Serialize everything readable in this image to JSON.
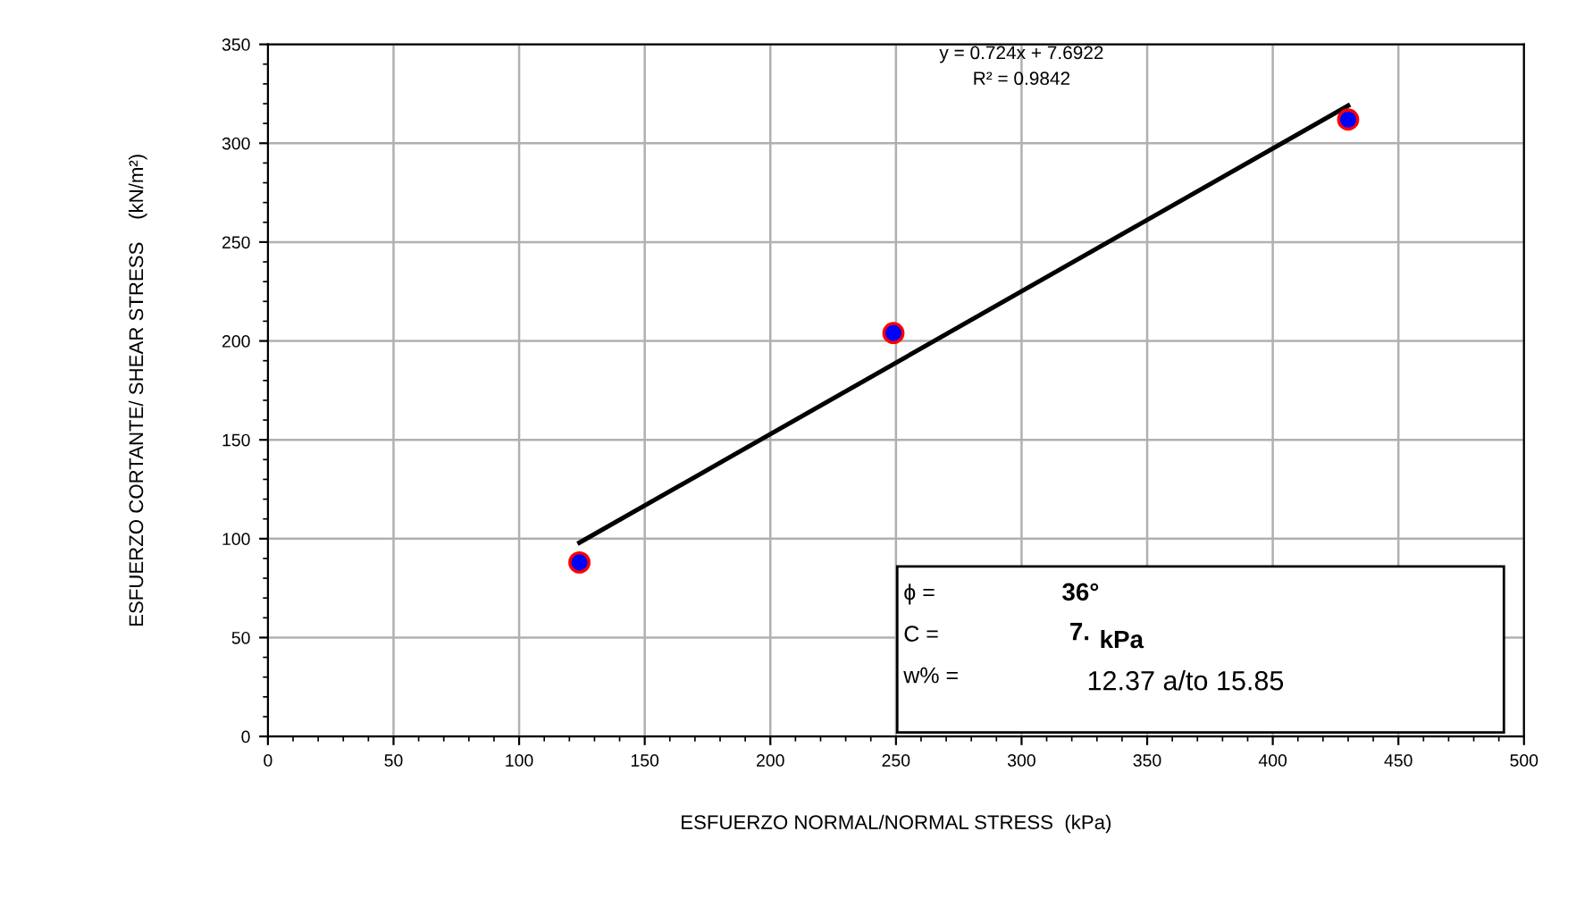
{
  "chart_data": {
    "type": "scatter",
    "xlabel": "ESFUERZO NORMAL/NORMAL STRESS  (kPa)",
    "ylabel": "ESFUERZO CORTANTE/ SHEAR STRESS    (kN/m²)",
    "series": [
      {
        "color": "#0000ff",
        "x": [
          124,
          249,
          430
        ],
        "values": [
          88,
          204,
          312
        ],
        "marker": "circle"
      },
      {
        "type": "line",
        "color": "#000000",
        "x": [
          124,
          430
        ],
        "values": [
          98,
          319
        ],
        "marker": "none",
        "line_style": "solid"
      }
    ],
    "annotations": [
      "y = 0.724x + 7.6922",
      "R² = 0.9842",
      "ϕ =",
      "36°",
      "C =",
      "7.",
      "kPa",
      "w% =",
      "12.37 a/to 15.85"
    ],
    "xlim": [
      0,
      500
    ],
    "xticks": [
      0,
      50,
      100,
      150,
      200,
      250,
      300,
      350,
      400,
      450,
      500
    ],
    "ylim": [
      0,
      350
    ],
    "yticks": [
      0,
      50,
      100,
      150,
      200,
      250,
      300,
      350
    ],
    "grid": true,
    "legend": false
  }
}
